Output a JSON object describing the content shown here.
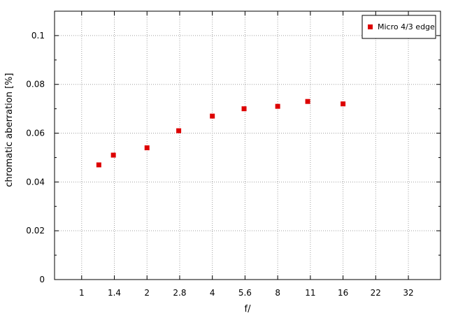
{
  "chart_data": {
    "type": "scatter",
    "title": "",
    "xlabel": "f/",
    "ylabel": "chromatic aberration [%]",
    "x_scale": "log2",
    "x_ticks": [
      "1",
      "1.4",
      "2",
      "2.8",
      "4",
      "5.6",
      "8",
      "11",
      "16",
      "22",
      "32"
    ],
    "x_range": [
      0.75,
      45
    ],
    "ylim": [
      0,
      0.11
    ],
    "y_ticks": [
      "0",
      "0.02",
      "0.04",
      "0.06",
      "0.08",
      "0.1"
    ],
    "grid": true,
    "legend_position": "top-right",
    "series": [
      {
        "name": "Micro 4/3 edge",
        "color": "#dd0000",
        "marker": "square",
        "points": [
          {
            "x": 1.2,
            "y": 0.047
          },
          {
            "x": 1.4,
            "y": 0.051
          },
          {
            "x": 2.0,
            "y": 0.054
          },
          {
            "x": 2.8,
            "y": 0.061
          },
          {
            "x": 4.0,
            "y": 0.067
          },
          {
            "x": 5.6,
            "y": 0.07
          },
          {
            "x": 8.0,
            "y": 0.071
          },
          {
            "x": 11.0,
            "y": 0.073
          },
          {
            "x": 16.0,
            "y": 0.072
          }
        ]
      }
    ]
  }
}
